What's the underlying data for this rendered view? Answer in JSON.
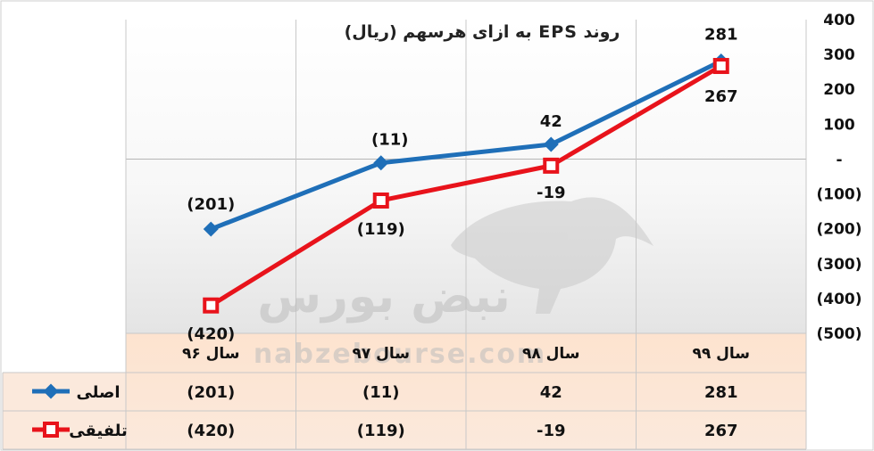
{
  "chart_data": {
    "type": "line",
    "title": "روند EPS به ازای هرسهم (ریال)",
    "categories": [
      "سال ۹۶",
      "سال ۹۷",
      "سال ۹۸",
      "سال ۹۹"
    ],
    "series": [
      {
        "name": "اصلی",
        "values": [
          -201,
          -11,
          42,
          281
        ],
        "labels": [
          "(201)",
          "(11)",
          "42",
          "281"
        ],
        "color": "#1f6fb8"
      },
      {
        "name": "تلفیقی",
        "values": [
          -420,
          -119,
          -19,
          267
        ],
        "labels": [
          "(420)",
          "(119)",
          "-19",
          "267"
        ],
        "color": "#e8131b"
      }
    ],
    "ylim": [
      -500,
      400
    ],
    "yticks": [
      400,
      300,
      200,
      100,
      0,
      -100,
      -200,
      -300,
      -400,
      -500
    ],
    "ytick_labels": [
      "400",
      "300",
      "200",
      "100",
      "-",
      "(100)",
      "(200)",
      "(300)",
      "(400)",
      "(500)"
    ],
    "y_axis_side": "right",
    "grid": true,
    "data_table": true
  },
  "watermark": {
    "persian": "نبض بورس",
    "latin": "nabzebourse.com"
  }
}
